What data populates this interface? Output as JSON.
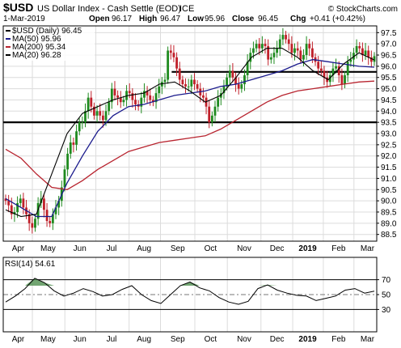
{
  "header": {
    "symbol": "$USD",
    "name": "US Dollar Index - Cash Settle (EOD)",
    "exchange": "ICE",
    "watermark": "© StockCharts.com",
    "date": "1-Mar-2019",
    "open_label": "Open",
    "open": "96.17",
    "high_label": "High",
    "high": "96.47",
    "low_label": "Low",
    "low": "95.96",
    "close_label": "Close",
    "close": "96.45",
    "chg_label": "Chg",
    "chg": "+0.41 (+0.42%)"
  },
  "legend": [
    {
      "label": "$USD (Daily) 96.45",
      "color": "#000000"
    },
    {
      "label": "MA(50) 95.96",
      "color": "#1a1a8c"
    },
    {
      "label": "MA(200) 95.34",
      "color": "#b8242f"
    },
    {
      "label": "MA(20) 96.28",
      "color": "#000000"
    }
  ],
  "colors": {
    "up": "#1f8a1f",
    "down": "#c0202a",
    "ma50": "#1a1a8c",
    "ma200": "#b8242f",
    "ma20": "#000000",
    "grid": "#dcdcdc",
    "rsi_fill": "#4f8f4f"
  },
  "rsi": {
    "label": "RSI(14) 54.61",
    "levels": [
      "30",
      "50",
      "70"
    ]
  },
  "chart_data": {
    "type": "candlestick",
    "x_labels": [
      "Apr",
      "May",
      "Jun",
      "Jul",
      "Aug",
      "Sep",
      "Oct",
      "Nov",
      "Dec",
      "2019",
      "Feb",
      "Mar"
    ],
    "y_ticks": [
      "88.5",
      "89.0",
      "89.5",
      "90.0",
      "90.5",
      "91.0",
      "91.5",
      "92.0",
      "92.5",
      "93.0",
      "93.5",
      "94.0",
      "94.5",
      "95.0",
      "95.5",
      "96.0",
      "96.5",
      "97.0",
      "97.5"
    ],
    "ylim": [
      88.2,
      97.8
    ],
    "annotations": [
      {
        "type": "horizontal-line",
        "y": 93.5
      },
      {
        "type": "horizontal-line",
        "y": 95.75,
        "from": "Sep",
        "to": "Mar"
      }
    ],
    "series": [
      {
        "name": "$USD (Daily)",
        "values": [
          90.0,
          89.8,
          89.4,
          89.5,
          89.9,
          90.1,
          89.7,
          89.4,
          89.0,
          88.8,
          89.2,
          89.9,
          90.1,
          89.6,
          89.1,
          89.0,
          89.4,
          89.7,
          90.0,
          90.6,
          91.4,
          92.1,
          92.6,
          92.5,
          93.1,
          93.5,
          93.5,
          94.0,
          94.6,
          94.2,
          93.8,
          94.0,
          93.8,
          93.6,
          94.0,
          94.4,
          95.0,
          94.7,
          94.6,
          94.4,
          94.5,
          94.9,
          94.8,
          94.5,
          94.3,
          94.2,
          94.6,
          94.9,
          94.7,
          94.5,
          94.4,
          94.8,
          95.1,
          95.3,
          95.4,
          96.7,
          96.6,
          96.4,
          95.9,
          95.4,
          95.2,
          95.1,
          95.1,
          95.4,
          95.2,
          95.0,
          94.7,
          94.6,
          94.2,
          93.5,
          93.8,
          94.2,
          94.6,
          94.8,
          95.1,
          95.5,
          95.8,
          95.5,
          95.2,
          95.0,
          95.2,
          95.6,
          96.2,
          96.6,
          96.8,
          97.0,
          96.8,
          97.0,
          96.9,
          96.3,
          96.4,
          96.6,
          96.8,
          97.2,
          97.4,
          97.2,
          97.0,
          96.6,
          96.8,
          96.7,
          96.3,
          96.5,
          97.0,
          96.8,
          96.4,
          96.2,
          95.9,
          95.8,
          95.5,
          95.3,
          95.6,
          95.9,
          96.0,
          95.6,
          95.2,
          95.6,
          96.2,
          96.3,
          96.6,
          96.9,
          96.8,
          96.5,
          96.7,
          96.4,
          96.2,
          96.45
        ]
      },
      {
        "name": "MA(50)",
        "values": [
          90.1,
          89.7,
          89.3,
          89.3,
          90.8,
          92.0,
          93.1,
          93.8,
          94.2,
          94.3,
          94.5,
          94.7,
          94.8,
          94.9,
          95.1,
          95.2,
          95.4,
          95.6,
          95.8,
          96.1,
          96.3,
          96.2,
          96.1,
          96.0,
          95.96
        ]
      },
      {
        "name": "MA(200)",
        "values": [
          92.3,
          91.9,
          91.2,
          90.6,
          90.5,
          90.9,
          91.4,
          91.8,
          92.2,
          92.4,
          92.6,
          92.7,
          92.8,
          92.9,
          93.2,
          93.6,
          94.0,
          94.4,
          94.7,
          94.9,
          95.0,
          95.1,
          95.2,
          95.3,
          95.34
        ]
      },
      {
        "name": "MA(20)",
        "values": [
          89.6,
          89.3,
          89.4,
          91.2,
          93.0,
          93.9,
          94.2,
          94.5,
          94.7,
          94.8,
          95.2,
          95.3,
          94.9,
          94.4,
          94.7,
          95.5,
          96.4,
          96.8,
          96.8,
          96.4,
          95.8,
          95.4,
          96.1,
          96.6,
          96.28
        ]
      },
      {
        "name": "RSI(14)",
        "values": [
          40,
          48,
          58,
          72,
          66,
          55,
          48,
          52,
          58,
          54,
          48,
          50,
          57,
          62,
          50,
          42,
          38,
          50,
          62,
          67,
          59,
          55,
          46,
          40,
          37,
          41,
          58,
          63,
          56,
          52,
          49,
          48,
          42,
          45,
          48,
          56,
          58,
          52,
          54.61
        ]
      }
    ]
  }
}
